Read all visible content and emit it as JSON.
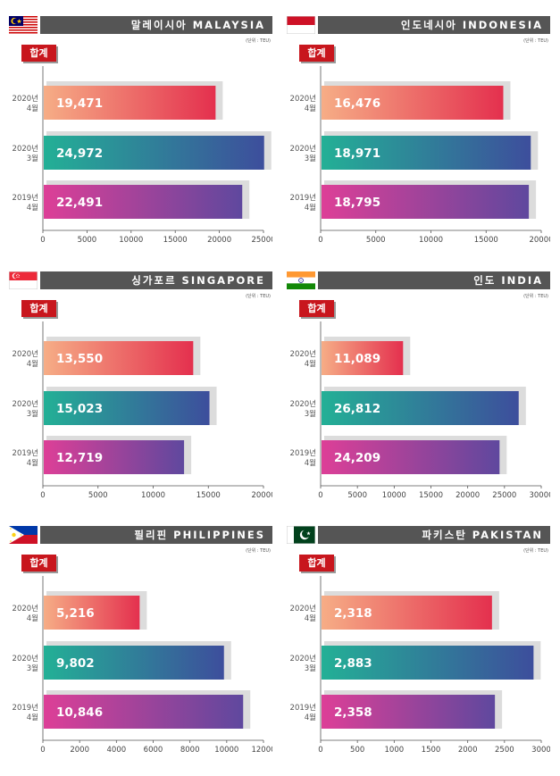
{
  "common": {
    "unit_label": "(단위 : TEU)",
    "total_label": "합계"
  },
  "panels": [
    {
      "id": "malaysia",
      "flag_icon": "malaysia-flag-icon",
      "title": "말레이시아 MALAYSIA"
    },
    {
      "id": "indonesia",
      "flag_icon": "indonesia-flag-icon",
      "title": "인도네시아 INDONESIA"
    },
    {
      "id": "singapore",
      "flag_icon": "singapore-flag-icon",
      "title": "싱가포르 SINGAPORE"
    },
    {
      "id": "india",
      "flag_icon": "india-flag-icon",
      "title": "인도 INDIA"
    },
    {
      "id": "philippines",
      "flag_icon": "philippines-flag-icon",
      "title": "필리핀 PHILIPPINES"
    },
    {
      "id": "pakistan",
      "flag_icon": "pakistan-flag-icon",
      "title": "파키스탄 PAKISTAN"
    }
  ],
  "chart_data": [
    {
      "type": "bar",
      "orientation": "horizontal",
      "title": "말레이시아 MALAYSIA",
      "categories": [
        [
          "2020년",
          "4월"
        ],
        [
          "2020년",
          "3월"
        ],
        [
          "2019년",
          "4월"
        ]
      ],
      "values": [
        19471,
        24972,
        22491
      ],
      "value_labels": [
        "19,471",
        "24,972",
        "22,491"
      ],
      "xlim": [
        0,
        25000
      ],
      "ticks": [
        0,
        5000,
        10000,
        15000,
        20000,
        25000
      ],
      "colors": [
        [
          "#f6ad86",
          "#e4304e"
        ],
        [
          "#23b096",
          "#3d4e9c"
        ],
        [
          "#dd3f97",
          "#5f489e"
        ]
      ]
    },
    {
      "type": "bar",
      "orientation": "horizontal",
      "title": "인도네시아 INDONESIA",
      "categories": [
        [
          "2020년",
          "4월"
        ],
        [
          "2020년",
          "3월"
        ],
        [
          "2019년",
          "4월"
        ]
      ],
      "values": [
        16476,
        18971,
        18795
      ],
      "value_labels": [
        "16,476",
        "18,971",
        "18,795"
      ],
      "xlim": [
        0,
        20000
      ],
      "ticks": [
        0,
        5000,
        10000,
        15000,
        20000
      ],
      "colors": [
        [
          "#f6ad86",
          "#e4304e"
        ],
        [
          "#23b096",
          "#3d4e9c"
        ],
        [
          "#dd3f97",
          "#5f489e"
        ]
      ]
    },
    {
      "type": "bar",
      "orientation": "horizontal",
      "title": "싱가포르 SINGAPORE",
      "categories": [
        [
          "2020년",
          "4월"
        ],
        [
          "2020년",
          "3월"
        ],
        [
          "2019년",
          "4월"
        ]
      ],
      "values": [
        13550,
        15023,
        12719
      ],
      "value_labels": [
        "13,550",
        "15,023",
        "12,719"
      ],
      "xlim": [
        0,
        20000
      ],
      "ticks": [
        0,
        5000,
        10000,
        15000,
        20000
      ],
      "colors": [
        [
          "#f6ad86",
          "#e4304e"
        ],
        [
          "#23b096",
          "#3d4e9c"
        ],
        [
          "#dd3f97",
          "#5f489e"
        ]
      ]
    },
    {
      "type": "bar",
      "orientation": "horizontal",
      "title": "인도 INDIA",
      "categories": [
        [
          "2020년",
          "4월"
        ],
        [
          "2020년",
          "3월"
        ],
        [
          "2019년",
          "4월"
        ]
      ],
      "values": [
        11089,
        26812,
        24209
      ],
      "value_labels": [
        "11,089",
        "26,812",
        "24,209"
      ],
      "xlim": [
        0,
        30000
      ],
      "ticks": [
        0,
        5000,
        10000,
        15000,
        20000,
        25000,
        30000
      ],
      "colors": [
        [
          "#f6ad86",
          "#e4304e"
        ],
        [
          "#23b096",
          "#3d4e9c"
        ],
        [
          "#dd3f97",
          "#5f489e"
        ]
      ]
    },
    {
      "type": "bar",
      "orientation": "horizontal",
      "title": "필리핀 PHILIPPINES",
      "categories": [
        [
          "2020년",
          "4월"
        ],
        [
          "2020년",
          "3월"
        ],
        [
          "2019년",
          "4월"
        ]
      ],
      "values": [
        5216,
        9802,
        10846
      ],
      "value_labels": [
        "5,216",
        "9,802",
        "10,846"
      ],
      "xlim": [
        0,
        12000
      ],
      "ticks": [
        0,
        2000,
        4000,
        6000,
        8000,
        10000,
        12000
      ],
      "colors": [
        [
          "#f6ad86",
          "#e4304e"
        ],
        [
          "#23b096",
          "#3d4e9c"
        ],
        [
          "#dd3f97",
          "#5f489e"
        ]
      ]
    },
    {
      "type": "bar",
      "orientation": "horizontal",
      "title": "파키스탄 PAKISTAN",
      "categories": [
        [
          "2020년",
          "4월"
        ],
        [
          "2020년",
          "3월"
        ],
        [
          "2019년",
          "4월"
        ]
      ],
      "values": [
        2318,
        2883,
        2358
      ],
      "value_labels": [
        "2,318",
        "2,883",
        "2,358"
      ],
      "xlim": [
        0,
        3000
      ],
      "ticks": [
        0,
        500,
        1000,
        1500,
        2000,
        2500,
        3000
      ],
      "colors": [
        [
          "#f6ad86",
          "#e4304e"
        ],
        [
          "#23b096",
          "#3d4e9c"
        ],
        [
          "#dd3f97",
          "#5f489e"
        ]
      ]
    }
  ]
}
